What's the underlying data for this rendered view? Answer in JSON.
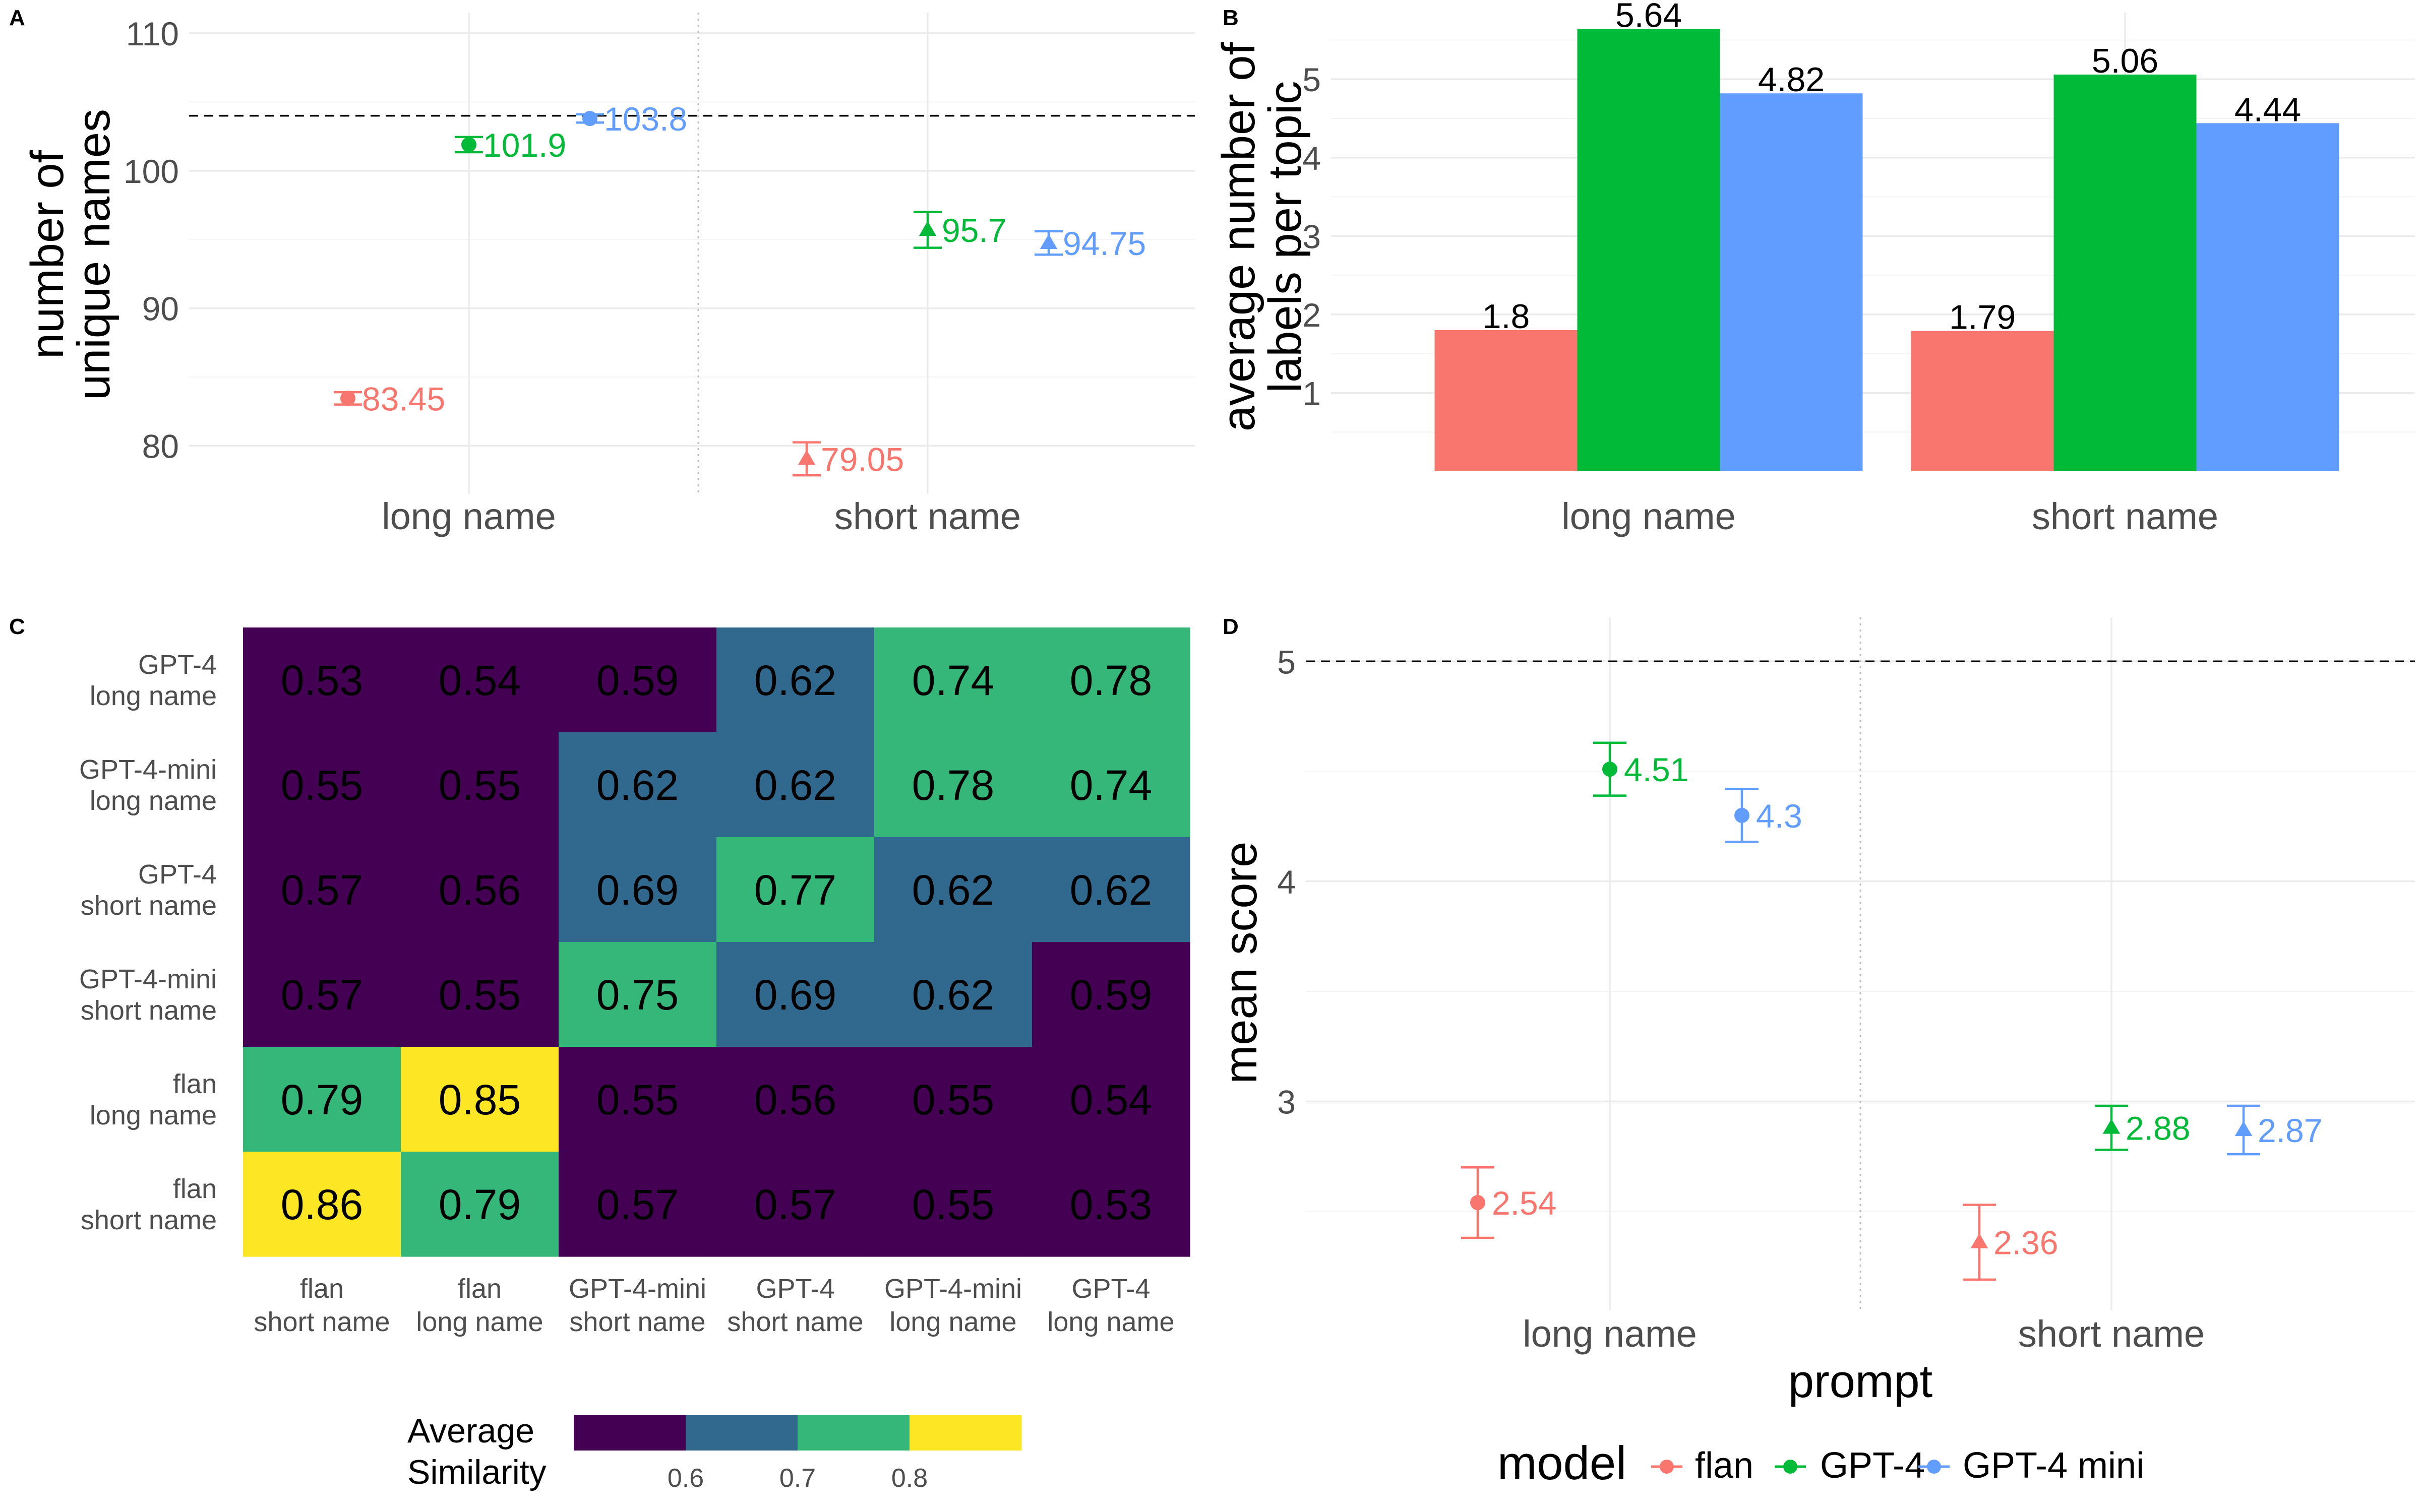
{
  "colors": {
    "flan": "#F8766D",
    "gpt4": "#00BA38",
    "gpt4mini": "#619CFF",
    "grid": "#EBEBEB",
    "axis_text": "#4D4D4D",
    "title_text": "#000000"
  },
  "panels": {
    "A": "A",
    "B": "B",
    "C": "C",
    "D": "D"
  },
  "chart_data": [
    {
      "panel": "A",
      "type": "scatter",
      "ylabel": "number of\nunique names",
      "ylim": [
        76.5,
        111.5
      ],
      "yticks": [
        80,
        90,
        100,
        110
      ],
      "categories": [
        "long name",
        "short name"
      ],
      "reference_line": 104,
      "series": [
        {
          "name": "flan",
          "values": [
            83.45,
            79.05
          ],
          "err": [
            0.45,
            1.2
          ]
        },
        {
          "name": "GPT-4",
          "values": [
            101.9,
            95.7
          ],
          "err": [
            0.55,
            1.3
          ]
        },
        {
          "name": "GPT-4 mini",
          "values": [
            103.8,
            94.75
          ],
          "err": [
            0.3,
            0.85
          ]
        }
      ],
      "data_labels": [
        [
          "83.45",
          "79.05"
        ],
        [
          "101.9",
          "95.7"
        ],
        [
          "103.8",
          "94.75"
        ]
      ]
    },
    {
      "panel": "B",
      "type": "bar",
      "ylabel": "average number of\nlabels per topic",
      "ylim": [
        0,
        5.85
      ],
      "yticks": [
        1,
        2,
        3,
        4,
        5
      ],
      "categories": [
        "long name",
        "short name"
      ],
      "series": [
        {
          "name": "flan",
          "values": [
            1.8,
            1.79
          ]
        },
        {
          "name": "GPT-4",
          "values": [
            5.64,
            5.06
          ]
        },
        {
          "name": "GPT-4 mini",
          "values": [
            4.82,
            4.44
          ]
        }
      ],
      "data_labels": [
        [
          "1.8",
          "1.79"
        ],
        [
          "5.64",
          "5.06"
        ],
        [
          "4.82",
          "4.44"
        ]
      ]
    },
    {
      "panel": "C",
      "type": "heatmap",
      "rows": [
        [
          "GPT-4",
          "long name"
        ],
        [
          "GPT-4-mini",
          "long name"
        ],
        [
          "GPT-4",
          "short name"
        ],
        [
          "GPT-4-mini",
          "short name"
        ],
        [
          "flan",
          "long name"
        ],
        [
          "flan",
          "short name"
        ]
      ],
      "cols": [
        [
          "flan",
          "short name"
        ],
        [
          "flan",
          "long name"
        ],
        [
          "GPT-4-mini",
          "short name"
        ],
        [
          "GPT-4",
          "short name"
        ],
        [
          "GPT-4-mini",
          "long name"
        ],
        [
          "GPT-4",
          "long name"
        ]
      ],
      "values": [
        [
          "0.53",
          "0.54",
          "0.59",
          "0.62",
          "0.74",
          "0.78"
        ],
        [
          "0.55",
          "0.55",
          "0.62",
          "0.62",
          "0.78",
          "0.74"
        ],
        [
          "0.57",
          "0.56",
          "0.69",
          "0.77",
          "0.62",
          "0.62"
        ],
        [
          "0.57",
          "0.55",
          "0.75",
          "0.69",
          "0.62",
          "0.59"
        ],
        [
          "0.79",
          "0.85",
          "0.55",
          "0.56",
          "0.55",
          "0.54"
        ],
        [
          "0.86",
          "0.79",
          "0.57",
          "0.57",
          "0.55",
          "0.53"
        ]
      ],
      "bins": [
        {
          "max": 0.6,
          "color": "#440154"
        },
        {
          "max": 0.7,
          "color": "#31688E"
        },
        {
          "max": 0.8,
          "color": "#35B779"
        },
        {
          "max": 1.0,
          "color": "#FDE725"
        }
      ],
      "legend_title": [
        "Average",
        "Similarity"
      ],
      "legend_ticks": [
        "0.6",
        "0.7",
        "0.8"
      ]
    },
    {
      "panel": "D",
      "type": "scatter",
      "ylabel": "mean score",
      "xlabel": "prompt",
      "ylim": [
        2.05,
        5.2
      ],
      "yticks": [
        3,
        4,
        5
      ],
      "categories": [
        "long name",
        "short name"
      ],
      "reference_line": 5,
      "series": [
        {
          "name": "flan",
          "values": [
            2.54,
            2.36
          ],
          "err": [
            0.16,
            0.17
          ]
        },
        {
          "name": "GPT-4",
          "values": [
            4.51,
            2.88
          ],
          "err": [
            0.12,
            0.1
          ]
        },
        {
          "name": "GPT-4 mini",
          "values": [
            4.3,
            2.87
          ],
          "err": [
            0.12,
            0.11
          ]
        }
      ],
      "data_labels": [
        [
          "2.54",
          "2.36"
        ],
        [
          "4.51",
          "2.88"
        ],
        [
          "4.3",
          "2.87"
        ]
      ],
      "legend_title": "model",
      "legend_entries": [
        "flan",
        "GPT-4",
        "GPT-4 mini"
      ]
    }
  ]
}
